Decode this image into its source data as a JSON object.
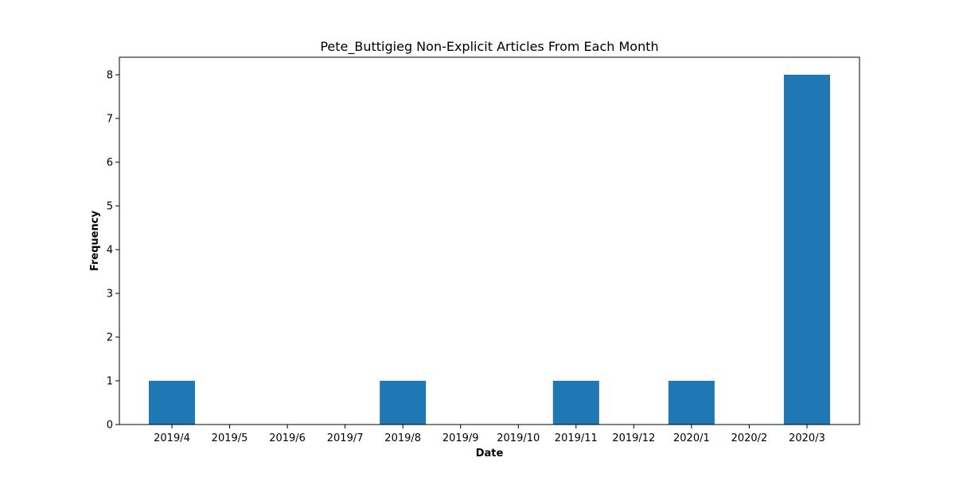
{
  "chart_data": {
    "type": "bar",
    "title": "Pete_Buttigieg Non-Explicit Articles From Each Month",
    "xlabel": "Date",
    "ylabel": "Frequency",
    "categories": [
      "2019/4",
      "2019/5",
      "2019/6",
      "2019/7",
      "2019/8",
      "2019/9",
      "2019/10",
      "2019/11",
      "2019/12",
      "2020/1",
      "2020/2",
      "2020/3"
    ],
    "values": [
      1,
      0,
      0,
      0,
      1,
      0,
      0,
      1,
      0,
      1,
      0,
      8
    ],
    "ylim": [
      0,
      8.4
    ],
    "yticks": [
      0,
      1,
      2,
      3,
      4,
      5,
      6,
      7,
      8
    ],
    "grid": false,
    "bar_color": "#1f77b4"
  }
}
